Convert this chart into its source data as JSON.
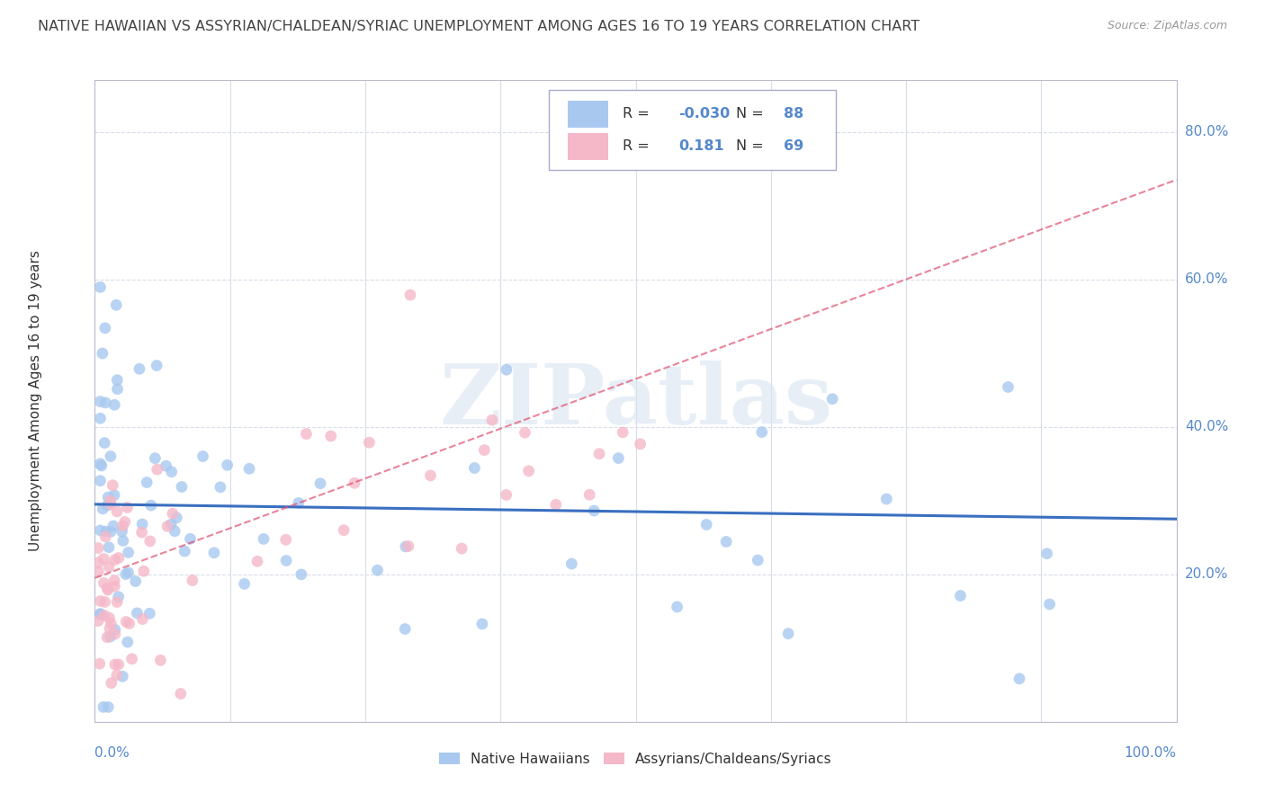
{
  "title": "NATIVE HAWAIIAN VS ASSYRIAN/CHALDEAN/SYRIAC UNEMPLOYMENT AMONG AGES 16 TO 19 YEARS CORRELATION CHART",
  "source": "Source: ZipAtlas.com",
  "ylabel": "Unemployment Among Ages 16 to 19 years",
  "color_blue": "#a8c8f0",
  "color_pink": "#f5b8c8",
  "color_blue_line": "#3a6fc0",
  "color_pink_line": "#e05070",
  "color_axis_label": "#5588cc",
  "color_grid": "#d8dde8",
  "color_title": "#444444",
  "watermark": "ZIPatlas",
  "r1": "-0.030",
  "n1": "88",
  "r2": "0.181",
  "n2": "69"
}
